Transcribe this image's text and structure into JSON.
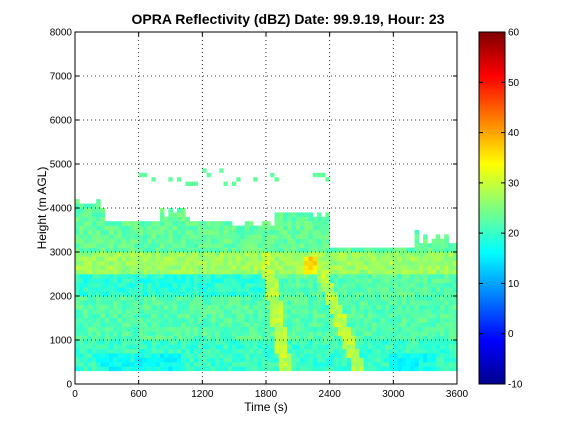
{
  "chart_data": {
    "type": "heatmap",
    "title": "OPRA Reflectivity (dBZ)  Date: 99.9.19, Hour: 23",
    "xlabel": "Time (s)",
    "ylabel": "Height (m AGL)",
    "xlim": [
      0,
      3600
    ],
    "ylim": [
      0,
      8000
    ],
    "xticks": [
      0,
      600,
      1200,
      1800,
      2400,
      3000,
      3600
    ],
    "yticks": [
      0,
      1000,
      2000,
      3000,
      4000,
      5000,
      6000,
      7000,
      8000
    ],
    "grid": "dotted",
    "colorbar": {
      "range": [
        -10,
        60
      ],
      "ticks": [
        -10,
        0,
        10,
        20,
        30,
        40,
        50,
        60
      ],
      "colormap": "jet"
    },
    "echo_layers": [
      {
        "feature": "main echo base",
        "height_m": 300
      },
      {
        "feature": "main echo top",
        "height_m": 3700
      },
      {
        "feature": "bright band layer",
        "height_m_range": [
          2500,
          3000
        ],
        "dbz": 30
      },
      {
        "feature": "cloud top patches",
        "height_m_range": [
          4000,
          4200
        ],
        "time_s_range": [
          0,
          300
        ]
      },
      {
        "feature": "upper echo fragments",
        "height_m_range": [
          4500,
          5000
        ],
        "time_s_range": [
          600,
          2400
        ]
      },
      {
        "feature": "fall streaks",
        "time_s_range": [
          1800,
          2800
        ],
        "dbz": 30
      },
      {
        "feature": "max reflectivity core",
        "time_s": 2200,
        "height_m": 2700,
        "dbz": 40
      }
    ]
  }
}
